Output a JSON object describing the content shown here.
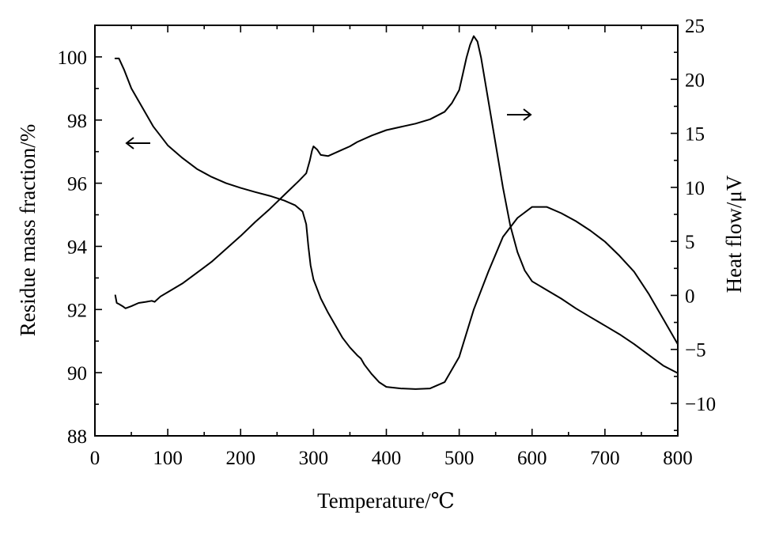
{
  "chart_data": {
    "type": "line",
    "title": "",
    "xlabel": "Temperature/℃",
    "ylabel_left": "Residue mass fraction/%",
    "ylabel_right": "Heat flow/μV",
    "xlim": [
      0,
      800
    ],
    "ylim_left": [
      88,
      101
    ],
    "ylim_right": [
      -13,
      25
    ],
    "x_ticks": [
      0,
      100,
      200,
      300,
      400,
      500,
      600,
      700,
      800
    ],
    "y_left_ticks": [
      88,
      90,
      92,
      94,
      96,
      98,
      100
    ],
    "y_right_ticks": [
      -10,
      -5,
      0,
      5,
      10,
      15,
      20,
      25
    ],
    "y_left_tick_labels": [
      "88",
      "90",
      "92",
      "94",
      "96",
      "98",
      "100"
    ],
    "y_right_tick_labels": [
      "−10",
      "−5",
      "0",
      "5",
      "10",
      "15",
      "20",
      "25"
    ],
    "grid": false,
    "series": [
      {
        "axis": "left",
        "arrow": "←",
        "x": [
          28,
          33,
          40,
          50,
          60,
          70,
          80,
          90,
          100,
          120,
          140,
          160,
          180,
          200,
          220,
          240,
          260,
          275,
          285,
          290,
          293,
          296,
          300,
          310,
          320,
          330,
          340,
          350,
          360,
          365,
          370,
          380,
          390,
          400,
          420,
          440,
          460,
          480,
          500,
          520,
          540,
          560,
          580,
          600,
          620,
          640,
          660,
          680,
          700,
          720,
          740,
          760,
          780,
          800
        ],
        "values": [
          99.95,
          99.95,
          99.6,
          99.0,
          98.6,
          98.2,
          97.8,
          97.5,
          97.2,
          96.8,
          96.45,
          96.2,
          96.0,
          95.85,
          95.72,
          95.6,
          95.45,
          95.3,
          95.1,
          94.7,
          94.0,
          93.4,
          92.95,
          92.35,
          91.9,
          91.5,
          91.1,
          90.8,
          90.55,
          90.45,
          90.25,
          89.95,
          89.7,
          89.55,
          89.5,
          89.48,
          89.5,
          89.7,
          90.5,
          92.0,
          93.2,
          94.3,
          94.9,
          95.25,
          95.25,
          95.05,
          94.8,
          94.5,
          94.15,
          93.7,
          93.2,
          92.5,
          91.7,
          90.9
        ]
      },
      {
        "axis": "right",
        "arrow": "→",
        "x": [
          28,
          30,
          33,
          38,
          42,
          50,
          60,
          70,
          78,
          82,
          90,
          100,
          120,
          140,
          160,
          180,
          200,
          220,
          240,
          260,
          280,
          290,
          295,
          298,
          300,
          305,
          310,
          320,
          330,
          340,
          350,
          360,
          380,
          400,
          420,
          440,
          460,
          480,
          490,
          500,
          505,
          510,
          515,
          520,
          525,
          530,
          540,
          550,
          560,
          570,
          580,
          590,
          600,
          620,
          640,
          660,
          680,
          700,
          720,
          740,
          760,
          780,
          800
        ],
        "values": [
          0,
          -0.7,
          -0.8,
          -1.0,
          -1.2,
          -1.0,
          -0.7,
          -0.6,
          -0.5,
          -0.6,
          -0.1,
          0.3,
          1.1,
          2.1,
          3.1,
          4.3,
          5.5,
          6.8,
          8.0,
          9.3,
          10.6,
          11.3,
          12.5,
          13.4,
          13.8,
          13.5,
          13.0,
          12.9,
          13.2,
          13.5,
          13.8,
          14.2,
          14.8,
          15.3,
          15.6,
          15.9,
          16.3,
          17.0,
          17.8,
          19.0,
          20.5,
          22.0,
          23.2,
          24.0,
          23.5,
          22.0,
          18.0,
          14.0,
          10.0,
          6.5,
          4.0,
          2.3,
          1.3,
          0.5,
          -0.3,
          -1.2,
          -2.0,
          -2.8,
          -3.6,
          -4.5,
          -5.5,
          -6.5,
          -7.2
        ]
      }
    ]
  }
}
